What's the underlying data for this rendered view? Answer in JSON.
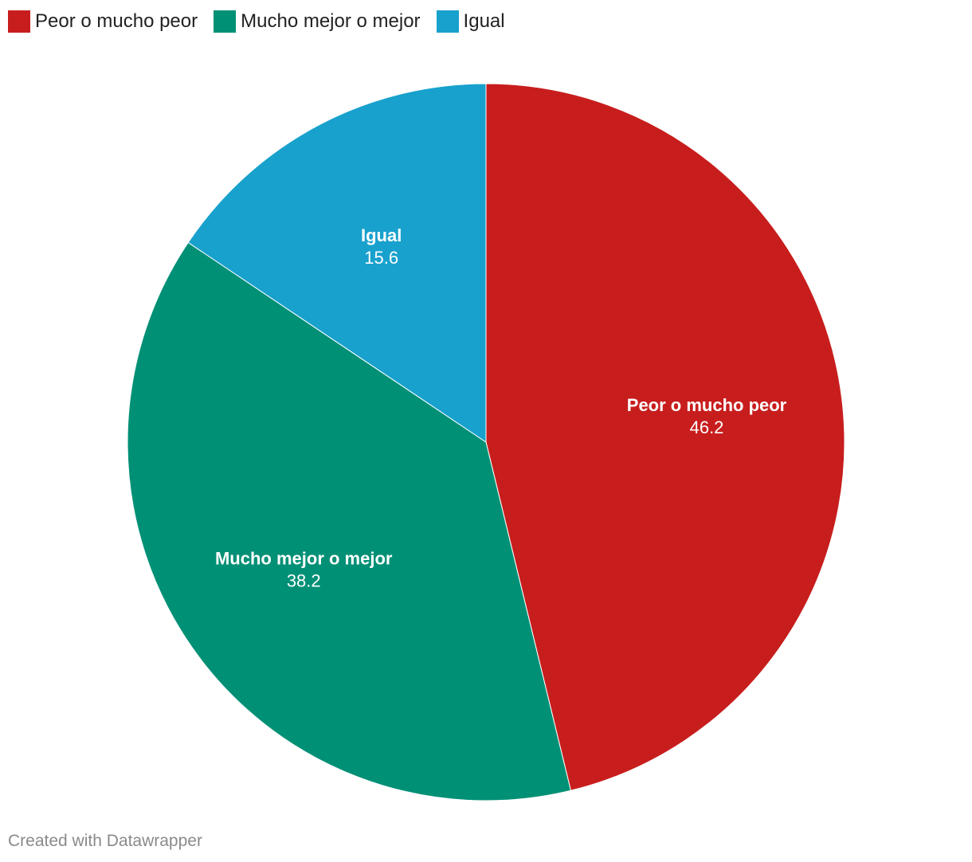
{
  "chart_data": {
    "type": "pie",
    "categories": [
      "Peor o mucho peor",
      "Mucho mejor o mejor",
      "Igual"
    ],
    "values": [
      46.2,
      38.2,
      15.6
    ],
    "colors": [
      "#c71e1d",
      "#009076",
      "#18a1cd"
    ],
    "legend_position": "top-left",
    "label_color": "#ffffff"
  },
  "credit": "Created with Datawrapper"
}
